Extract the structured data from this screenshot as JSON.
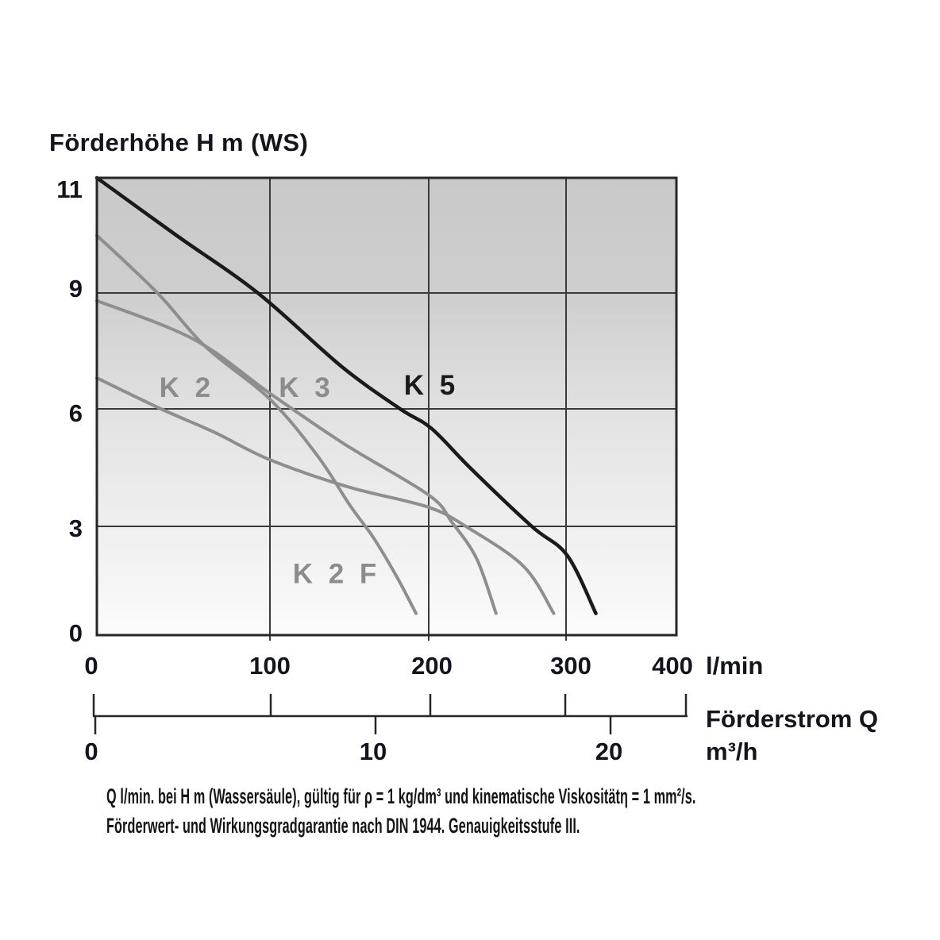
{
  "title": "Förderhöhe H m (WS)",
  "colors": {
    "curve_gray": "#8e8e8e",
    "curve_black": "#1a1a1a",
    "grid": "#3a3a3a",
    "border": "#262626",
    "text": "#14141e",
    "label_gray": "#8c8c8c",
    "bg_gradient_top": "#c9c9c9",
    "bg_gradient_bottom": "#fbfbfb"
  },
  "axes": {
    "y_ticks": [
      "11",
      "9",
      "6",
      "3",
      "0"
    ],
    "x_ticks_lmin": [
      "0",
      "100",
      "200",
      "300",
      "400"
    ],
    "x_unit_lmin": "l/min",
    "flow_axis_label": "Förderstrom Q",
    "x_ticks_m3h": [
      "0",
      "10",
      "20"
    ],
    "x_unit_m3h": "m³/h"
  },
  "chart_data": {
    "type": "line",
    "title": "Förderhöhe H m (WS)",
    "ylabel": "Förderhöhe H m (WS)",
    "xlabel": "Förderstrom Q",
    "x_units": [
      "l/min",
      "m³/h"
    ],
    "xlim_lmin": [
      0,
      400
    ],
    "ylim": [
      0,
      11
    ],
    "y_tick_values": [
      0,
      3,
      6,
      9,
      11
    ],
    "x_tick_values_lmin": [
      0,
      100,
      200,
      300,
      400
    ],
    "x_tick_values_m3h": [
      0,
      10,
      20
    ],
    "grid": true,
    "legend_position": "inline-labels",
    "series": [
      {
        "name": "K 2",
        "color_role": "gray",
        "points_Q_lmin_H_m": [
          [
            0,
            6.8
          ],
          [
            37,
            6.0
          ],
          [
            68,
            5.4
          ],
          [
            100,
            4.7
          ],
          [
            150,
            4.0
          ],
          [
            199,
            3.5
          ],
          [
            227,
            3.0
          ],
          [
            269,
            1.9
          ],
          [
            291,
            0.6
          ]
        ]
      },
      {
        "name": "K 3",
        "color_role": "gray",
        "points_Q_lmin_H_m": [
          [
            0,
            8.8
          ],
          [
            56,
            7.8
          ],
          [
            100,
            6.4
          ],
          [
            147,
            5.1
          ],
          [
            200,
            3.8
          ],
          [
            217,
            3.1
          ],
          [
            235,
            2.1
          ],
          [
            249,
            0.6
          ]
        ]
      },
      {
        "name": "K 2 F",
        "color_role": "gray",
        "points_Q_lmin_H_m": [
          [
            0,
            10.0
          ],
          [
            35,
            9.0
          ],
          [
            63,
            7.6
          ],
          [
            100,
            6.25
          ],
          [
            130,
            4.8
          ],
          [
            151,
            3.5
          ],
          [
            165,
            2.7
          ],
          [
            180,
            1.6
          ],
          [
            192,
            0.6
          ]
        ]
      },
      {
        "name": "K 5",
        "color_role": "black",
        "points_Q_lmin_H_m": [
          [
            0,
            11.0
          ],
          [
            46,
            10.0
          ],
          [
            93,
            9.0
          ],
          [
            145,
            7.1
          ],
          [
            182,
            6.0
          ],
          [
            202,
            5.5
          ],
          [
            230,
            4.5
          ],
          [
            275,
            3.0
          ],
          [
            301,
            2.2
          ],
          [
            327,
            0.6
          ]
        ]
      }
    ],
    "curve_labels": [
      {
        "text": "K 2",
        "q": 52,
        "h": 6.55,
        "color_role": "gray"
      },
      {
        "text": "K 3",
        "q": 123,
        "h": 6.55,
        "color_role": "gray"
      },
      {
        "text": "K 5",
        "q": 202,
        "h": 6.62,
        "color_role": "black"
      },
      {
        "text": "K 2 F",
        "q": 142,
        "h": 1.7,
        "color_role": "gray"
      }
    ]
  },
  "footnotes": [
    "Q l/min. bei H m (Wassersäule), gültig für ρ = 1 kg/dm³ und kinematische Viskositätη = 1 mm²/s.",
    "Förderwert- und Wirkungsgradgarantie nach DIN 1944. Genauigkeitsstufe III."
  ]
}
